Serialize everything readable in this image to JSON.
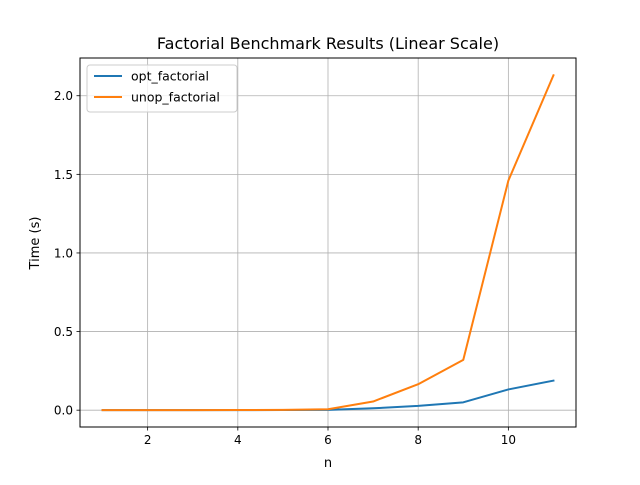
{
  "chart_data": {
    "type": "line",
    "title": "Factorial Benchmark Results (Linear Scale)",
    "xlabel": "n",
    "ylabel": "Time (s)",
    "x": [
      1,
      2,
      3,
      4,
      5,
      6,
      7,
      8,
      9,
      10,
      11
    ],
    "xlim": [
      0.5,
      11.5
    ],
    "ylim": [
      -0.107,
      2.24
    ],
    "xticks": [
      2,
      4,
      6,
      8,
      10
    ],
    "yticks": [
      0.0,
      0.5,
      1.0,
      1.5,
      2.0
    ],
    "xtick_labels": [
      "2",
      "4",
      "6",
      "8",
      "10"
    ],
    "ytick_labels": [
      "0.0",
      "0.5",
      "1.0",
      "1.5",
      "2.0"
    ],
    "grid": true,
    "legend_position": "upper-left",
    "series": [
      {
        "name": "opt_factorial",
        "color": "#1f77b4",
        "values": [
          0.0,
          0.0,
          0.0,
          0.0005,
          0.001,
          0.002,
          0.012,
          0.027,
          0.05,
          0.132,
          0.188
        ]
      },
      {
        "name": "unop_factorial",
        "color": "#ff7f0e",
        "values": [
          0.0,
          0.0,
          0.0005,
          0.001,
          0.002,
          0.006,
          0.055,
          0.165,
          0.32,
          1.46,
          2.13
        ]
      }
    ]
  }
}
